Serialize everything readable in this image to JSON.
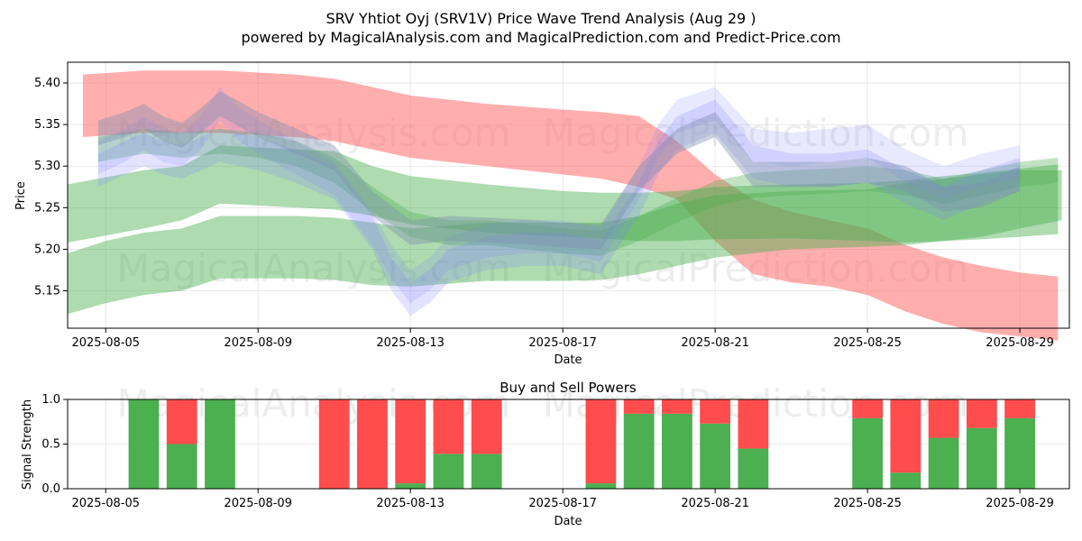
{
  "title_line1": "SRV Yhtiot Oyj (SRV1V) Price Wave Trend Analysis (Aug 29 )",
  "title_line2": "powered by MagicalAnalysis.com and MagicalPrediction.com and Predict-Price.com",
  "watermarks": [
    "MagicalAnalysis.com",
    "MagicalPrediction.com"
  ],
  "chart_data": [
    {
      "type": "area",
      "title": "",
      "xlabel": "Date",
      "ylabel": "Price",
      "x_range": [
        "2025-08-04",
        "2025-08-30"
      ],
      "ylim": [
        5.105,
        5.425
      ],
      "x_ticks": [
        "2025-08-05",
        "2025-08-09",
        "2025-08-13",
        "2025-08-17",
        "2025-08-21",
        "2025-08-25",
        "2025-08-29"
      ],
      "y_ticks": [
        5.15,
        5.2,
        5.25,
        5.3,
        5.35,
        5.4
      ],
      "grid": true,
      "colors": {
        "red": "#ff6b6b",
        "green": "#4caf50",
        "blue": "#8080ff",
        "gray": "#7a8fb0"
      },
      "bands": [
        {
          "color": "red",
          "opacity": 0.55,
          "x": [
            4.4,
            6,
            8,
            10,
            11,
            13,
            15,
            17,
            18,
            19,
            20,
            21,
            22,
            23,
            24,
            25,
            26,
            27,
            28,
            29,
            30
          ],
          "upper": [
            5.41,
            5.415,
            5.415,
            5.41,
            5.405,
            5.385,
            5.375,
            5.368,
            5.365,
            5.36,
            5.33,
            5.29,
            5.26,
            5.245,
            5.235,
            5.225,
            5.205,
            5.19,
            5.18,
            5.172,
            5.167
          ],
          "lower": [
            5.335,
            5.34,
            5.34,
            5.335,
            5.33,
            5.31,
            5.3,
            5.29,
            5.285,
            5.275,
            5.26,
            5.21,
            5.17,
            5.16,
            5.155,
            5.145,
            5.125,
            5.11,
            5.1,
            5.095,
            5.09
          ]
        },
        {
          "color": "green",
          "opacity": 0.45,
          "x": [
            4.0,
            6,
            7,
            8,
            10,
            11,
            12,
            13,
            15,
            17,
            18,
            19,
            20,
            21,
            23,
            25,
            26,
            27,
            28,
            29,
            30
          ],
          "upper": [
            5.278,
            5.295,
            5.3,
            5.325,
            5.32,
            5.318,
            5.3,
            5.288,
            5.278,
            5.27,
            5.268,
            5.268,
            5.27,
            5.275,
            5.278,
            5.28,
            5.283,
            5.288,
            5.292,
            5.297,
            5.302
          ],
          "lower": [
            5.208,
            5.225,
            5.235,
            5.255,
            5.25,
            5.248,
            5.24,
            5.23,
            5.22,
            5.215,
            5.213,
            5.21,
            5.21,
            5.212,
            5.213,
            5.21,
            5.208,
            5.21,
            5.212,
            5.215,
            5.218
          ]
        },
        {
          "color": "green",
          "opacity": 0.45,
          "x": [
            4.0,
            5,
            6,
            7,
            8,
            10,
            11,
            12,
            13,
            15,
            17,
            18,
            19,
            20,
            21,
            23,
            25,
            26,
            27,
            28,
            29,
            30.1
          ],
          "upper": [
            5.195,
            5.21,
            5.22,
            5.225,
            5.24,
            5.24,
            5.238,
            5.232,
            5.225,
            5.232,
            5.232,
            5.232,
            5.24,
            5.255,
            5.265,
            5.27,
            5.272,
            5.28,
            5.285,
            5.29,
            5.295,
            5.295
          ],
          "lower": [
            5.122,
            5.135,
            5.145,
            5.15,
            5.165,
            5.165,
            5.163,
            5.157,
            5.155,
            5.162,
            5.162,
            5.163,
            5.17,
            5.18,
            5.19,
            5.2,
            5.203,
            5.205,
            5.21,
            5.215,
            5.225,
            5.235
          ]
        },
        {
          "color": "green",
          "opacity": 0.35,
          "x": [
            4.8,
            6,
            7,
            8,
            9,
            10,
            11,
            12,
            13,
            14,
            15,
            16,
            17,
            18,
            19,
            20,
            21,
            22,
            23,
            24,
            25,
            26,
            27,
            28,
            29,
            30
          ],
          "upper": [
            5.335,
            5.345,
            5.34,
            5.345,
            5.34,
            5.33,
            5.31,
            5.275,
            5.245,
            5.235,
            5.235,
            5.23,
            5.225,
            5.222,
            5.24,
            5.262,
            5.282,
            5.292,
            5.295,
            5.297,
            5.3,
            5.295,
            5.285,
            5.295,
            5.305,
            5.31
          ],
          "lower": [
            5.305,
            5.315,
            5.31,
            5.315,
            5.31,
            5.3,
            5.28,
            5.245,
            5.215,
            5.205,
            5.205,
            5.2,
            5.195,
            5.192,
            5.21,
            5.232,
            5.252,
            5.262,
            5.265,
            5.267,
            5.27,
            5.265,
            5.255,
            5.265,
            5.275,
            5.28
          ]
        },
        {
          "color": "blue",
          "opacity": 0.22,
          "x": [
            4.8,
            5.5,
            6,
            6.5,
            7,
            7.5,
            8,
            8.5,
            9,
            10,
            11,
            12,
            12.5,
            13,
            13.5,
            14,
            15,
            16,
            17,
            18,
            19,
            19.5,
            20,
            21,
            22,
            23,
            24,
            25,
            26,
            27,
            28,
            29
          ],
          "upper": [
            5.315,
            5.33,
            5.34,
            5.33,
            5.325,
            5.335,
            5.345,
            5.34,
            5.335,
            5.32,
            5.3,
            5.24,
            5.19,
            5.16,
            5.175,
            5.2,
            5.215,
            5.22,
            5.22,
            5.21,
            5.28,
            5.33,
            5.36,
            5.38,
            5.325,
            5.315,
            5.315,
            5.32,
            5.295,
            5.275,
            5.295,
            5.31
          ],
          "lower": [
            5.275,
            5.29,
            5.3,
            5.29,
            5.285,
            5.295,
            5.305,
            5.3,
            5.295,
            5.28,
            5.26,
            5.2,
            5.15,
            5.12,
            5.135,
            5.16,
            5.175,
            5.18,
            5.18,
            5.17,
            5.24,
            5.29,
            5.32,
            5.34,
            5.285,
            5.275,
            5.275,
            5.28,
            5.255,
            5.235,
            5.255,
            5.27
          ]
        },
        {
          "color": "blue",
          "opacity": 0.18,
          "x": [
            4.8,
            5.5,
            6,
            6.5,
            7,
            7.5,
            8,
            8.5,
            9,
            10,
            11,
            12,
            12.5,
            13,
            13.5,
            14,
            15,
            16,
            17,
            18,
            19,
            19.5,
            20,
            21,
            22,
            23,
            24,
            25,
            26,
            27,
            28,
            29
          ],
          "upper": [
            5.33,
            5.345,
            5.36,
            5.345,
            5.34,
            5.36,
            5.395,
            5.37,
            5.355,
            5.33,
            5.305,
            5.245,
            5.205,
            5.175,
            5.19,
            5.215,
            5.23,
            5.235,
            5.235,
            5.225,
            5.3,
            5.35,
            5.38,
            5.395,
            5.345,
            5.34,
            5.345,
            5.35,
            5.32,
            5.3,
            5.315,
            5.325
          ],
          "lower": [
            5.29,
            5.305,
            5.32,
            5.305,
            5.3,
            5.32,
            5.355,
            5.33,
            5.315,
            5.29,
            5.265,
            5.205,
            5.165,
            5.135,
            5.15,
            5.175,
            5.19,
            5.195,
            5.195,
            5.185,
            5.26,
            5.31,
            5.34,
            5.355,
            5.305,
            5.3,
            5.305,
            5.31,
            5.28,
            5.26,
            5.275,
            5.285
          ]
        },
        {
          "color": "gray",
          "opacity": 0.4,
          "x": [
            4.8,
            5.5,
            6,
            6.5,
            7,
            7.5,
            8,
            8.5,
            9,
            10,
            11,
            12,
            13,
            14,
            15,
            16,
            17,
            18,
            19,
            20,
            21,
            22,
            23,
            24,
            25,
            26,
            27,
            28,
            29
          ],
          "upper": [
            5.355,
            5.365,
            5.375,
            5.36,
            5.352,
            5.37,
            5.39,
            5.378,
            5.365,
            5.345,
            5.325,
            5.27,
            5.235,
            5.24,
            5.238,
            5.236,
            5.232,
            5.23,
            5.3,
            5.345,
            5.365,
            5.305,
            5.305,
            5.305,
            5.31,
            5.3,
            5.275,
            5.28,
            5.3
          ],
          "lower": [
            5.325,
            5.335,
            5.345,
            5.33,
            5.322,
            5.34,
            5.36,
            5.348,
            5.335,
            5.315,
            5.295,
            5.24,
            5.205,
            5.21,
            5.208,
            5.206,
            5.202,
            5.2,
            5.27,
            5.315,
            5.335,
            5.275,
            5.275,
            5.275,
            5.28,
            5.27,
            5.245,
            5.25,
            5.27
          ]
        }
      ]
    },
    {
      "type": "bar",
      "title": "Buy and Sell Powers",
      "xlabel": "Date",
      "ylabel": "Signal Strength",
      "x_range": [
        "2025-08-04",
        "2025-08-30"
      ],
      "ylim": [
        0,
        1.0
      ],
      "x_ticks": [
        "2025-08-05",
        "2025-08-09",
        "2025-08-13",
        "2025-08-17",
        "2025-08-21",
        "2025-08-25",
        "2025-08-29"
      ],
      "y_ticks": [
        "0.0",
        "0.5",
        "1.0"
      ],
      "grid": true,
      "colors": {
        "buy": "#4caf50",
        "sell": "#ff4c4c"
      },
      "categories": [
        "2025-08-06",
        "2025-08-07",
        "2025-08-08",
        "2025-08-11",
        "2025-08-12",
        "2025-08-13",
        "2025-08-14",
        "2025-08-15",
        "2025-08-18",
        "2025-08-19",
        "2025-08-20",
        "2025-08-21",
        "2025-08-22",
        "2025-08-25",
        "2025-08-26",
        "2025-08-27",
        "2025-08-28",
        "2025-08-29"
      ],
      "series": [
        {
          "name": "Buy",
          "values": [
            1.0,
            0.5,
            1.0,
            0.0,
            0.0,
            0.06,
            0.39,
            0.39,
            0.06,
            0.84,
            0.84,
            0.73,
            0.45,
            0.79,
            0.18,
            0.57,
            0.68,
            0.79
          ]
        },
        {
          "name": "Sell",
          "values": [
            0.0,
            0.5,
            0.0,
            1.0,
            1.0,
            0.94,
            0.61,
            0.61,
            0.94,
            0.16,
            0.16,
            0.27,
            0.55,
            0.21,
            0.82,
            0.43,
            0.32,
            0.21
          ]
        }
      ]
    }
  ]
}
